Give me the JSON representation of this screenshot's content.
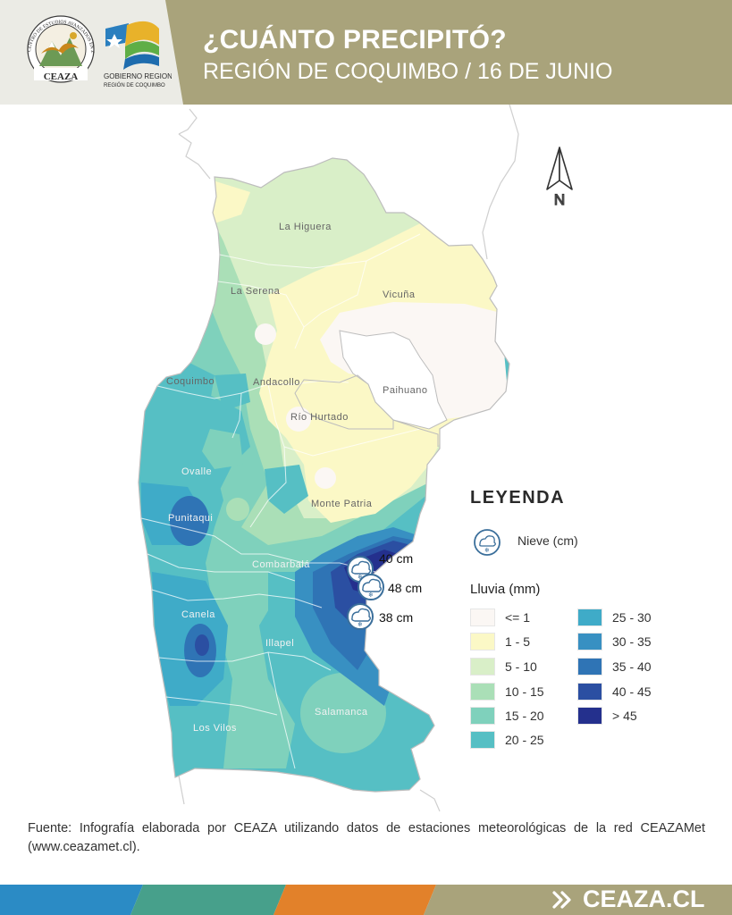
{
  "header": {
    "title": "¿CUÁNTO PRECIPITÓ?",
    "subtitle": "REGIÓN DE COQUIMBO / 16 DE JUNIO",
    "logo_ceaza_arc_text": "CENTRO DE ESTUDIOS AVANZADOS EN ZONAS ÁRIDAS",
    "logo_ceaza_name": "CEAZA",
    "logo_gobierno_line1": "GOBIERNO REGIONAL",
    "logo_gobierno_line2": "REGIÓN DE COQUIMBO"
  },
  "map": {
    "north_label": "N",
    "places": [
      "La Higuera",
      "La Serena",
      "Vicuña",
      "Coquimbo",
      "Andacollo",
      "Paihuano",
      "Río Hurtado",
      "Ovalle",
      "Monte Patria",
      "Punitaqui",
      "Combarbalá",
      "Canela",
      "Illapel",
      "Salamanca",
      "Los Vilos"
    ],
    "snow_stations": [
      {
        "value": "40 cm"
      },
      {
        "value": "48 cm"
      },
      {
        "value": "38 cm"
      }
    ]
  },
  "legend": {
    "title": "LEYENDA",
    "snow_label": "Nieve (cm)",
    "rain_title": "Lluvia (mm)",
    "items": [
      {
        "label": "<= 1",
        "color": "#fbf7f4"
      },
      {
        "label": "1 - 5",
        "color": "#fbf8c6"
      },
      {
        "label": "5 - 10",
        "color": "#d9efc8"
      },
      {
        "label": "10 - 15",
        "color": "#aadfb7"
      },
      {
        "label": "15 - 20",
        "color": "#7fd1bc"
      },
      {
        "label": "20 - 25",
        "color": "#56bfc4"
      },
      {
        "label": "25 - 30",
        "color": "#3fabc8"
      },
      {
        "label": "30 - 35",
        "color": "#3890c2"
      },
      {
        "label": "35 - 40",
        "color": "#2f74b5"
      },
      {
        "label": "40 - 45",
        "color": "#2b4fa2"
      },
      {
        "label": "> 45",
        "color": "#24308d"
      }
    ]
  },
  "source": "Fuente: Infografía elaborada por CEAZA utilizando datos de estaciones meteorológicas de la red CEAZAMet (www.ceazamet.cl).",
  "footer": {
    "site": "CEAZA.CL",
    "chevron": "»",
    "colors": [
      "#2b8bc5",
      "#47a08b",
      "#e2812a",
      "#a9a37b"
    ]
  }
}
